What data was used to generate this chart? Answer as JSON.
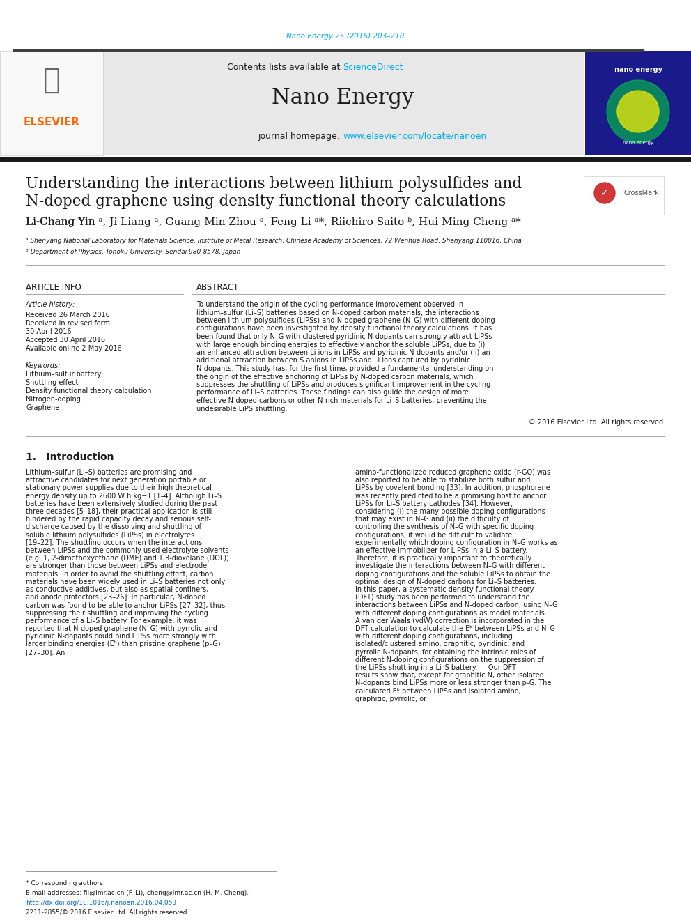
{
  "journal_ref": "Nano Energy 25 (2016) 203–210",
  "journal_ref_color": "#00AEEF",
  "contents_text": "Contents lists available at ",
  "sciencedirect_text": "ScienceDirect",
  "sciencedirect_color": "#00AEEF",
  "journal_name": "Nano Energy",
  "journal_homepage_prefix": "journal homepage: ",
  "journal_homepage_url": "www.elsevier.com/locate/nanoen",
  "journal_homepage_url_color": "#00AEEF",
  "header_bg": "#E8E8E8",
  "title_line1": "Understanding the interactions between lithium polysulfides and",
  "title_line2": "N-doped graphene using density functional theory calculations",
  "authors": "Li-Chang Yin ¹, Ji Liang ¹, Guang-Min Zhou ¹, Feng Li ¹*, Riichiro Saito ², Hui-Ming Cheng ¹*",
  "affil_a": "ᵃ Shenyang National Laboratory for Materials Science, Institute of Metal Research, Chinese Academy of Sciences, 72 Wenhua Road, Shenyang 110016, China",
  "affil_b": "ᵇ Department of Physics, Tohoku University, Sendai 980-8578, Japan",
  "article_info_label": "ARTICLE INFO",
  "abstract_label": "ABSTRACT",
  "article_history_label": "Article history:",
  "received_label": "Received 26 March 2016",
  "revised_label": "Received in revised form",
  "revised_date": "30 April 2016",
  "accepted_label": "Accepted 30 April 2016",
  "online_label": "Available online 2 May 2016",
  "keywords_label": "Keywords:",
  "keyword1": "Lithium–sulfur battery",
  "keyword2": "Shuttling effect",
  "keyword3": "Density functional theory calculation",
  "keyword4": "Nitrogen-doping",
  "keyword5": "Graphene",
  "abstract_text": "To understand the origin of the cycling performance improvement observed in lithium–sulfur (Li–S) batteries based on N-doped carbon materials, the interactions between lithium polysulfides (LiPSs) and N-doped graphene (N–G) with different doping configurations have been investigated by density functional theory calculations. It has been found that only N–G with clustered pyridinic N-dopants can strongly attract LiPSs with large enough binding energies to effectively anchor the soluble LiPSs, due to (i) an enhanced attraction between Li ions in LiPSs and pyridinic N-dopants and/or (ii) an additional attraction between S anions in LiPSs and Li ions captured by pyridinic N-dopants. This study has, for the first time, provided a fundamental understanding on the origin of the effective anchoring of LiPSs by N-doped carbon materials, which suppresses the shuttling of LiPSs and produces significant improvement in the cycling performance of Li–S batteries. These findings can also guide the design of more effective N-doped carbons or other N-rich materials for Li–S batteries, preventing the undesirable LiPS shuttling.",
  "copyright_text": "© 2016 Elsevier Ltd. All rights reserved.",
  "intro_heading": "1.   Introduction",
  "intro_col1": "Lithium–sulfur (Li–S) batteries are promising and attractive candidates for next generation portable or stationary power supplies due to their high theoretical energy density up to 2600 W h kg−1 [1–4]. Although Li–S batteries have been extensively studied during the past three decades [5–18], their practical application is still hindered by the rapid capacity decay and serious self-discharge caused by the dissolving and shuttling of soluble lithium polysulfides (LiPSs) in electrolytes [19–22]. The shuttling occurs when the interactions between LiPSs and the commonly used electrolyte solvents (e.g. 1, 2-dimethoxyethane (DME) and 1,3-dioxolane (DOL)) are stronger than those between LiPSs and electrode materials. In order to avoid the shuttling effect, carbon materials have been widely used in Li–S batteries not only as conductive additives, but also as spatial confiners, and anode protectors [23–26]. In particular, N-doped carbon was found to be able to anchor LiPSs [27–32], thus suppressing their shuttling and improving the cycling performance of a Li–S battery. For example, it was reported that N-doped graphene (N–G) with pyrrolic and pyridinic N-dopants could bind LiPSs more strongly with larger binding energies (Eᵇ) than pristine graphene (p–G) [27–30]. An",
  "intro_col2": "amino-functionalized reduced graphene oxide (r-GO) was also reported to be able to stabilize both sulfur and LiPSs by covalent bonding [33]. In addition, phosphorene was recently predicted to be a promising host to anchor LiPSs for Li–S battery cathodes [34]. However, considering (i) the many possible doping configurations that may exist in N–G and (ii) the difficulty of controlling the synthesis of N–G with specific doping configurations, it would be difficult to validate experimentally which doping configuration in N–G works as an effective immobilizer for LiPSs in a Li–S battery. Therefore, it is practically important to theoretically investigate the interactions between N–G with different doping configurations and the soluble LiPSs to obtain the optimal design of N-doped carbons for Li–S batteries.\n    In this paper, a systematic density functional theory (DFT) study has been performed to understand the interactions between LiPSs and N-doped carbon, using N–G with different doping configurations as model materials. A van der Waals (vdW) correction is incorporated in the DFT calculation to calculate the Eᵇ between LiPSs and N–G with different doping configurations, including isolated/clustered amino, graphitic, pyridinic, and pyrrolic N-dopants, for obtaining the intrinsic roles of different N-doping configurations on the suppression of the LiPSs shuttling in a Li–S battery.\n    Our DFT results show that, except for graphitic N, other isolated N-dopants bind LiPSs more or less stronger than p-G. The calculated Eᵇ between LiPSs and isolated amino, graphitic, pyrrolic, or",
  "footnote_corresponding": "* Corresponding authors.",
  "footnote_email": "E-mail addresses: fli@imr.ac.cn (F. Li), cheng@imr.ac.cn (H.-M. Cheng).",
  "footnote_doi": "http://dx.doi.org/10.1016/j.nanoen.2016.04.053",
  "footnote_issn": "2211-2855/© 2016 Elsevier Ltd. All rights reserved.",
  "bg_white": "#FFFFFF",
  "text_black": "#000000",
  "text_dark": "#1A1A1A",
  "elsevier_orange": "#FF6600",
  "divider_color": "#404040",
  "section_divider": "#999999"
}
